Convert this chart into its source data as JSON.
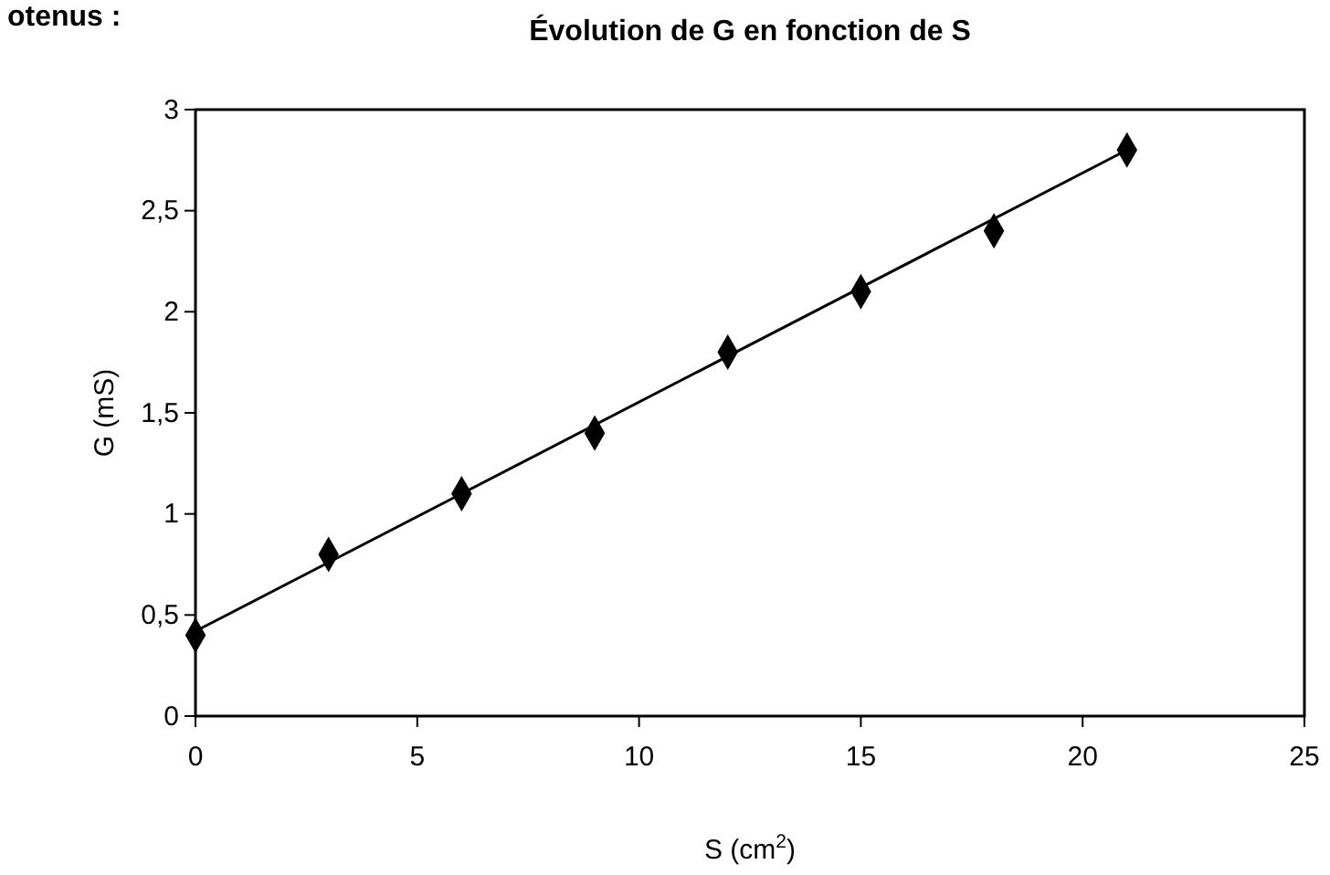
{
  "chart_data": {
    "type": "scatter",
    "title": "Évolution de G en fonction de S",
    "xlabel": "S (cm$^{2}$)",
    "ylabel": "G (mS)",
    "annotations": [
      "otenus :"
    ],
    "xlim": [
      0,
      25
    ],
    "xticks": [
      0,
      5,
      10,
      15,
      20,
      25
    ],
    "ylim": [
      0,
      3
    ],
    "yticks": [
      0,
      {
        "value": 0.5,
        "label": "0,5"
      },
      1,
      {
        "value": 1.5,
        "label": "1,5"
      },
      2,
      {
        "value": 2.5,
        "label": "2,5"
      },
      3
    ],
    "grid": false,
    "series": [
      {
        "color": "#000000",
        "marker": "diamond",
        "x": [
          0,
          3,
          6,
          9,
          12,
          15,
          18,
          21
        ],
        "values": [
          0.4,
          0.8,
          1.1,
          1.4,
          1.8,
          2.1,
          2.4,
          2.8
        ]
      },
      {
        "type": "line",
        "color": "#000000",
        "marker": "none",
        "line_style": "solid",
        "x": [
          0,
          21
        ],
        "values": [
          0.42,
          2.8
        ]
      }
    ]
  }
}
